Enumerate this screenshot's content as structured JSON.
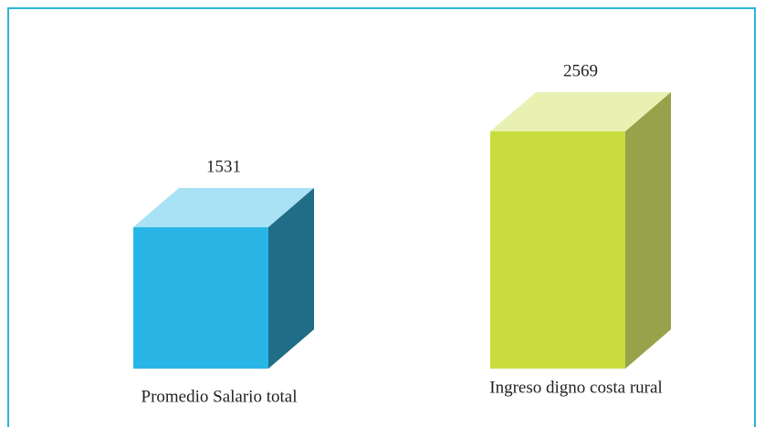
{
  "chart_data": {
    "type": "bar",
    "categories": [
      "Promedio Salario total",
      "Ingreso digno costa rural"
    ],
    "values": [
      1531,
      2569
    ],
    "colors": [
      "#29b6e6",
      "#c8dc3e"
    ]
  }
}
